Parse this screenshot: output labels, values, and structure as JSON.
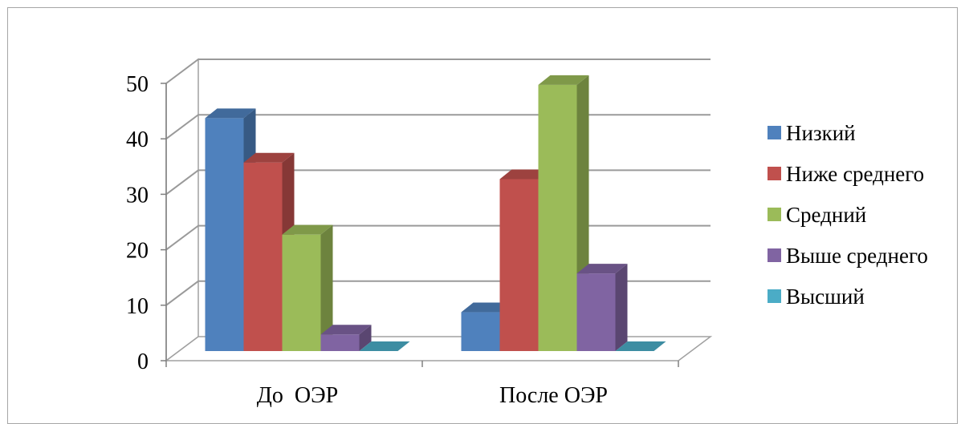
{
  "chart_data": {
    "type": "bar",
    "style": "3d-clustered-column",
    "categories": [
      "До  ОЭР",
      "После ОЭР"
    ],
    "series": [
      {
        "name": "Низкий",
        "color": "#4F81BD",
        "values": [
          42,
          7
        ]
      },
      {
        "name": "Ниже среднего",
        "color": "#C0504D",
        "values": [
          34,
          31
        ]
      },
      {
        "name": "Средний",
        "color": "#9BBB59",
        "values": [
          21,
          48
        ]
      },
      {
        "name": "Выше среднего",
        "color": "#8064A2",
        "values": [
          3,
          14
        ]
      },
      {
        "name": "Высший",
        "color": "#4BACC6",
        "values": [
          0,
          0
        ]
      }
    ],
    "y_ticks": [
      "0",
      "10",
      "20",
      "30",
      "40",
      "50"
    ],
    "ylim": [
      0,
      50
    ],
    "grid": true,
    "legend_position": "right",
    "title": "",
    "xlabel": "",
    "ylabel": ""
  }
}
